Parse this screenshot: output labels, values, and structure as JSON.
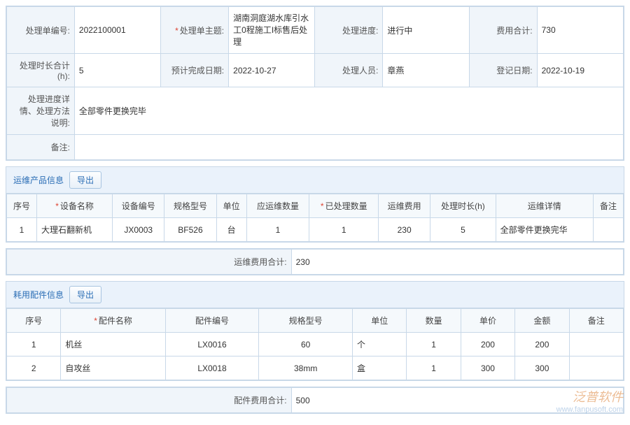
{
  "form": {
    "order_no": {
      "label": "处理单编号:",
      "value": "2022100001"
    },
    "subject": {
      "label": "处理单主题:",
      "value": "湖南洞庭湖水库引水工0程施工I标售后处理",
      "required": true
    },
    "progress": {
      "label": "处理进度:",
      "value": "进行中"
    },
    "fee_total": {
      "label": "费用合计:",
      "value": "730"
    },
    "hours_total": {
      "label": "处理时长合计(h):",
      "value": "5"
    },
    "est_done": {
      "label": "预计完成日期:",
      "value": "2022-10-27"
    },
    "handler": {
      "label": "处理人员:",
      "value": "章燕"
    },
    "reg_date": {
      "label": "登记日期:",
      "value": "2022-10-19"
    },
    "detail": {
      "label": "处理进度详情、处理方法说明:",
      "value": "全部零件更换完毕"
    },
    "remark": {
      "label": "备注:",
      "value": ""
    }
  },
  "products": {
    "title": "运维产品信息",
    "export_btn": "导出",
    "headers": [
      "序号",
      "设备名称",
      "设备编号",
      "规格型号",
      "单位",
      "应运维数量",
      "已处理数量",
      "运维费用",
      "处理时长(h)",
      "运维详情",
      "备注"
    ],
    "required_cols": [
      false,
      true,
      false,
      false,
      false,
      false,
      true,
      false,
      false,
      false,
      false
    ],
    "rows": [
      [
        "1",
        "大理石翻新机",
        "JX0003",
        "BF526",
        "台",
        "1",
        "1",
        "230",
        "5",
        "全部零件更换完华",
        ""
      ]
    ],
    "summary": {
      "label": "运维费用合计:",
      "value": "230"
    }
  },
  "parts": {
    "title": "耗用配件信息",
    "export_btn": "导出",
    "headers": [
      "序号",
      "配件名称",
      "配件编号",
      "规格型号",
      "单位",
      "数量",
      "单价",
      "金额",
      "备注"
    ],
    "required_cols": [
      false,
      true,
      false,
      false,
      false,
      false,
      false,
      false,
      false
    ],
    "rows": [
      [
        "1",
        "机丝",
        "LX0016",
        "60",
        "个",
        "1",
        "200",
        "200",
        ""
      ],
      [
        "2",
        "自攻丝",
        "LX0018",
        "38mm",
        "盒",
        "1",
        "300",
        "300",
        ""
      ]
    ],
    "summary": {
      "label": "配件费用合计:",
      "value": "500"
    }
  },
  "watermark": {
    "brand": "泛普软件",
    "url": "www.fanpusoft.com"
  }
}
